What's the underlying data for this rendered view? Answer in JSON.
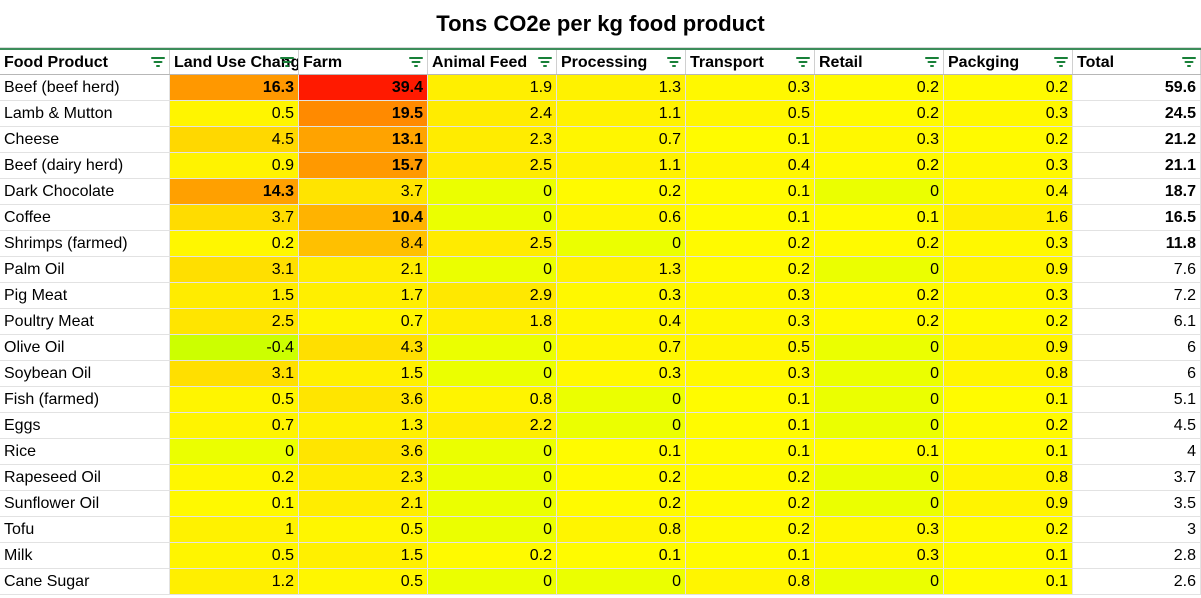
{
  "title": "Tons CO2e per kg food product",
  "columns": [
    {
      "label": "Food Product",
      "width": 170
    },
    {
      "label": "Land Use Change",
      "width": 129
    },
    {
      "label": "Farm",
      "width": 129
    },
    {
      "label": "Animal Feed",
      "width": 129
    },
    {
      "label": "Processing",
      "width": 129
    },
    {
      "label": "Transport",
      "width": 129
    },
    {
      "label": "Retail",
      "width": 129
    },
    {
      "label": "Packging",
      "width": 129
    },
    {
      "label": "Total",
      "width": 128
    }
  ],
  "colors": {
    "filter_icon": "#188038",
    "header_border": "#3c8d5a"
  },
  "rows": [
    {
      "name": "Beef (beef herd)",
      "values": [
        "16.3",
        "39.4",
        "1.9",
        "1.3",
        "0.3",
        "0.2",
        "0.2",
        "59.6"
      ],
      "bold": [
        true,
        true,
        false,
        false,
        false,
        false,
        false,
        true
      ],
      "colors": [
        "#ff9800",
        "#ff1a00",
        "#ffef00",
        "#fff200",
        "#fff800",
        "#fffa00",
        "#fffa00",
        "#ffffff"
      ]
    },
    {
      "name": "Lamb & Mutton",
      "values": [
        "0.5",
        "19.5",
        "2.4",
        "1.1",
        "0.5",
        "0.2",
        "0.3",
        "24.5"
      ],
      "bold": [
        false,
        true,
        false,
        false,
        false,
        false,
        false,
        true
      ],
      "colors": [
        "#fff500",
        "#ff8a00",
        "#ffec00",
        "#fff200",
        "#fff600",
        "#fffa00",
        "#fff800",
        "#ffffff"
      ]
    },
    {
      "name": "Cheese",
      "values": [
        "4.5",
        "13.1",
        "2.3",
        "0.7",
        "0.1",
        "0.3",
        "0.2",
        "21.2"
      ],
      "bold": [
        false,
        true,
        false,
        false,
        false,
        false,
        false,
        true
      ],
      "colors": [
        "#ffd800",
        "#ffa300",
        "#ffec00",
        "#fff600",
        "#fffb00",
        "#fff800",
        "#fffa00",
        "#ffffff"
      ]
    },
    {
      "name": "Beef (dairy herd)",
      "values": [
        "0.9",
        "15.7",
        "2.5",
        "1.1",
        "0.4",
        "0.2",
        "0.3",
        "21.1"
      ],
      "bold": [
        false,
        true,
        false,
        false,
        false,
        false,
        false,
        true
      ],
      "colors": [
        "#fff300",
        "#ff9900",
        "#ffeb00",
        "#fff200",
        "#fff700",
        "#fffa00",
        "#fff800",
        "#ffffff"
      ]
    },
    {
      "name": "Dark Chocolate",
      "values": [
        "14.3",
        "3.7",
        "0",
        "0.2",
        "0.1",
        "0",
        "0.4",
        "18.7"
      ],
      "bold": [
        true,
        false,
        false,
        false,
        false,
        false,
        false,
        true
      ],
      "colors": [
        "#ffa000",
        "#ffe400",
        "#ebff00",
        "#fffa00",
        "#fffb00",
        "#ebff00",
        "#fff700",
        "#ffffff"
      ]
    },
    {
      "name": "Coffee",
      "values": [
        "3.7",
        "10.4",
        "0",
        "0.6",
        "0.1",
        "0.1",
        "1.6",
        "16.5"
      ],
      "bold": [
        false,
        true,
        false,
        false,
        false,
        false,
        false,
        true
      ],
      "colors": [
        "#ffdc00",
        "#ffb300",
        "#ebff00",
        "#fff600",
        "#fffb00",
        "#fffb00",
        "#ffef00",
        "#ffffff"
      ]
    },
    {
      "name": "Shrimps (farmed)",
      "values": [
        "0.2",
        "8.4",
        "2.5",
        "0",
        "0.2",
        "0.2",
        "0.3",
        "11.8"
      ],
      "bold": [
        false,
        false,
        false,
        false,
        false,
        false,
        false,
        true
      ],
      "colors": [
        "#fff700",
        "#ffc000",
        "#ffeb00",
        "#ebff00",
        "#fffa00",
        "#fffa00",
        "#fff800",
        "#ffffff"
      ]
    },
    {
      "name": "Palm Oil",
      "values": [
        "3.1",
        "2.1",
        "0",
        "1.3",
        "0.2",
        "0",
        "0.9",
        "7.6"
      ],
      "bold": [
        false,
        false,
        false,
        false,
        false,
        false,
        false,
        false
      ],
      "colors": [
        "#ffdf00",
        "#ffed00",
        "#ebff00",
        "#fff200",
        "#fffa00",
        "#ebff00",
        "#fff400",
        "#ffffff"
      ]
    },
    {
      "name": "Pig Meat",
      "values": [
        "1.5",
        "1.7",
        "2.9",
        "0.3",
        "0.3",
        "0.2",
        "0.3",
        "7.2"
      ],
      "bold": [
        false,
        false,
        false,
        false,
        false,
        false,
        false,
        false
      ],
      "colors": [
        "#ffec00",
        "#ffef00",
        "#ffe800",
        "#fff800",
        "#fff800",
        "#fffa00",
        "#fff800",
        "#ffffff"
      ]
    },
    {
      "name": "Poultry Meat",
      "values": [
        "2.5",
        "0.7",
        "1.8",
        "0.4",
        "0.3",
        "0.2",
        "0.2",
        "6.1"
      ],
      "bold": [
        false,
        false,
        false,
        false,
        false,
        false,
        false,
        false
      ],
      "colors": [
        "#ffe500",
        "#fff500",
        "#ffee00",
        "#fff700",
        "#fff800",
        "#fffa00",
        "#fffa00",
        "#ffffff"
      ]
    },
    {
      "name": "Olive Oil",
      "values": [
        "-0.4",
        "4.3",
        "0",
        "0.7",
        "0.5",
        "0",
        "0.9",
        "6"
      ],
      "bold": [
        false,
        false,
        false,
        false,
        false,
        false,
        false,
        false
      ],
      "colors": [
        "#ccff00",
        "#ffdf00",
        "#ebff00",
        "#fff600",
        "#fff600",
        "#ebff00",
        "#fff400",
        "#ffffff"
      ]
    },
    {
      "name": "Soybean Oil",
      "values": [
        "3.1",
        "1.5",
        "0",
        "0.3",
        "0.3",
        "0",
        "0.8",
        "6"
      ],
      "bold": [
        false,
        false,
        false,
        false,
        false,
        false,
        false,
        false
      ],
      "colors": [
        "#ffdf00",
        "#fff000",
        "#ebff00",
        "#fff800",
        "#fff800",
        "#ebff00",
        "#fff500",
        "#ffffff"
      ]
    },
    {
      "name": "Fish (farmed)",
      "values": [
        "0.5",
        "3.6",
        "0.8",
        "0",
        "0.1",
        "0",
        "0.1",
        "5.1"
      ],
      "bold": [
        false,
        false,
        false,
        false,
        false,
        false,
        false,
        false
      ],
      "colors": [
        "#fff500",
        "#ffe500",
        "#fff400",
        "#ebff00",
        "#fffb00",
        "#ebff00",
        "#fffb00",
        "#ffffff"
      ]
    },
    {
      "name": "Eggs",
      "values": [
        "0.7",
        "1.3",
        "2.2",
        "0",
        "0.1",
        "0",
        "0.2",
        "4.5"
      ],
      "bold": [
        false,
        false,
        false,
        false,
        false,
        false,
        false,
        false
      ],
      "colors": [
        "#fff400",
        "#fff100",
        "#ffed00",
        "#ebff00",
        "#fffb00",
        "#ebff00",
        "#fffa00",
        "#ffffff"
      ]
    },
    {
      "name": "Rice",
      "values": [
        "0",
        "3.6",
        "0",
        "0.1",
        "0.1",
        "0.1",
        "0.1",
        "4"
      ],
      "bold": [
        false,
        false,
        false,
        false,
        false,
        false,
        false,
        false
      ],
      "colors": [
        "#ebff00",
        "#ffe500",
        "#ebff00",
        "#fffb00",
        "#fffb00",
        "#fffb00",
        "#fffb00",
        "#ffffff"
      ]
    },
    {
      "name": "Rapeseed Oil",
      "values": [
        "0.2",
        "2.3",
        "0",
        "0.2",
        "0.2",
        "0",
        "0.8",
        "3.7"
      ],
      "bold": [
        false,
        false,
        false,
        false,
        false,
        false,
        false,
        false
      ],
      "colors": [
        "#fff700",
        "#ffec00",
        "#ebff00",
        "#fffa00",
        "#fffa00",
        "#ebff00",
        "#fff500",
        "#ffffff"
      ]
    },
    {
      "name": "Sunflower Oil",
      "values": [
        "0.1",
        "2.1",
        "0",
        "0.2",
        "0.2",
        "0",
        "0.9",
        "3.5"
      ],
      "bold": [
        false,
        false,
        false,
        false,
        false,
        false,
        false,
        false
      ],
      "colors": [
        "#fff900",
        "#ffed00",
        "#ebff00",
        "#fffa00",
        "#fffa00",
        "#ebff00",
        "#fff400",
        "#ffffff"
      ]
    },
    {
      "name": "Tofu",
      "values": [
        "1",
        "0.5",
        "0",
        "0.8",
        "0.2",
        "0.3",
        "0.2",
        "3"
      ],
      "bold": [
        false,
        false,
        false,
        false,
        false,
        false,
        false,
        false
      ],
      "colors": [
        "#fff200",
        "#fff600",
        "#ebff00",
        "#fff500",
        "#fffa00",
        "#fff800",
        "#fffa00",
        "#ffffff"
      ]
    },
    {
      "name": "Milk",
      "values": [
        "0.5",
        "1.5",
        "0.2",
        "0.1",
        "0.1",
        "0.3",
        "0.1",
        "2.8"
      ],
      "bold": [
        false,
        false,
        false,
        false,
        false,
        false,
        false,
        false
      ],
      "colors": [
        "#fff500",
        "#fff000",
        "#fffa00",
        "#fffb00",
        "#fffb00",
        "#fff800",
        "#fffb00",
        "#ffffff"
      ]
    },
    {
      "name": "Cane Sugar",
      "values": [
        "1.2",
        "0.5",
        "0",
        "0",
        "0.8",
        "0",
        "0.1",
        "2.6"
      ],
      "bold": [
        false,
        false,
        false,
        false,
        false,
        false,
        false,
        false
      ],
      "colors": [
        "#ffef00",
        "#fff600",
        "#ebff00",
        "#ebff00",
        "#fff500",
        "#ebff00",
        "#fffb00",
        "#ffffff"
      ]
    }
  ]
}
